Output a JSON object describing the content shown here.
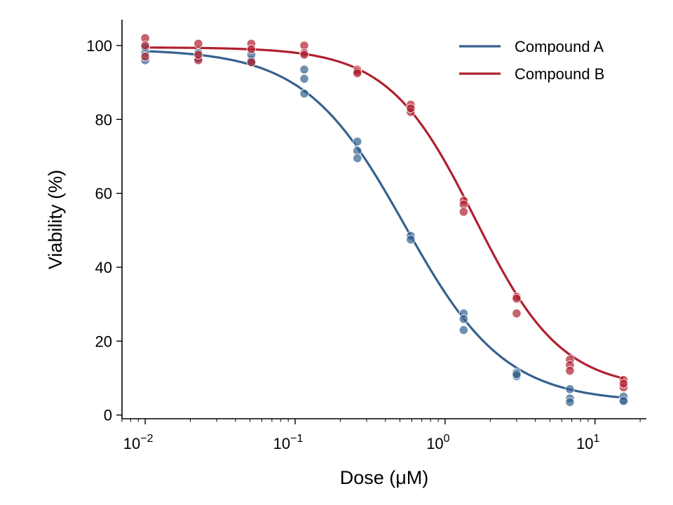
{
  "chart_data": {
    "type": "scatter",
    "title": "",
    "xlabel": "Dose (μM)",
    "ylabel": "Viability (%)",
    "xscale": "log",
    "xlim": [
      0.007,
      22
    ],
    "ylim": [
      -1,
      107
    ],
    "x_ticks": [
      {
        "value": 0.01,
        "label": "10",
        "exp": "−2"
      },
      {
        "value": 0.1,
        "label": "10",
        "exp": "−1"
      },
      {
        "value": 1,
        "label": "10",
        "exp": "0"
      },
      {
        "value": 10,
        "label": "10",
        "exp": "1"
      }
    ],
    "y_ticks": [
      0,
      20,
      40,
      60,
      80,
      100
    ],
    "grid": false,
    "legend": {
      "placement": "top-right"
    },
    "series": [
      {
        "name": "Compound A",
        "color": "#35618f",
        "fit": {
          "top": 99,
          "bottom": 3.5,
          "ic50": 0.54,
          "hill": 1.3
        },
        "points": [
          {
            "x": 0.01,
            "y": 96
          },
          {
            "x": 0.01,
            "y": 98
          },
          {
            "x": 0.01,
            "y": 99.5
          },
          {
            "x": 0.0226,
            "y": 97
          },
          {
            "x": 0.0226,
            "y": 98
          },
          {
            "x": 0.0226,
            "y": 96.5
          },
          {
            "x": 0.051,
            "y": 96
          },
          {
            "x": 0.051,
            "y": 97.5
          },
          {
            "x": 0.051,
            "y": 95.5
          },
          {
            "x": 0.115,
            "y": 87
          },
          {
            "x": 0.115,
            "y": 91
          },
          {
            "x": 0.115,
            "y": 93.5
          },
          {
            "x": 0.26,
            "y": 74
          },
          {
            "x": 0.26,
            "y": 71.5
          },
          {
            "x": 0.26,
            "y": 69.5
          },
          {
            "x": 0.59,
            "y": 48.5
          },
          {
            "x": 0.59,
            "y": 47.5
          },
          {
            "x": 1.33,
            "y": 27.5
          },
          {
            "x": 1.33,
            "y": 26
          },
          {
            "x": 1.33,
            "y": 23
          },
          {
            "x": 3.0,
            "y": 11.5
          },
          {
            "x": 3.0,
            "y": 10.5
          },
          {
            "x": 3.0,
            "y": 11
          },
          {
            "x": 6.8,
            "y": 7
          },
          {
            "x": 6.8,
            "y": 4.5
          },
          {
            "x": 6.8,
            "y": 3.5
          },
          {
            "x": 15.5,
            "y": 4
          },
          {
            "x": 15.5,
            "y": 5
          },
          {
            "x": 15.5,
            "y": 3.8
          }
        ]
      },
      {
        "name": "Compound B",
        "color": "#b0202f",
        "fit": {
          "top": 99.5,
          "bottom": 7,
          "ic50": 1.58,
          "hill": 1.5
        },
        "points": [
          {
            "x": 0.01,
            "y": 102
          },
          {
            "x": 0.01,
            "y": 100
          },
          {
            "x": 0.01,
            "y": 97
          },
          {
            "x": 0.0226,
            "y": 100.5
          },
          {
            "x": 0.0226,
            "y": 96
          },
          {
            "x": 0.0226,
            "y": 97.5
          },
          {
            "x": 0.051,
            "y": 100.5
          },
          {
            "x": 0.051,
            "y": 95.5
          },
          {
            "x": 0.051,
            "y": 99
          },
          {
            "x": 0.115,
            "y": 100
          },
          {
            "x": 0.115,
            "y": 98
          },
          {
            "x": 0.115,
            "y": 97.5
          },
          {
            "x": 0.26,
            "y": 93.5
          },
          {
            "x": 0.26,
            "y": 93
          },
          {
            "x": 0.26,
            "y": 92.5
          },
          {
            "x": 0.59,
            "y": 84
          },
          {
            "x": 0.59,
            "y": 82
          },
          {
            "x": 0.59,
            "y": 83
          },
          {
            "x": 1.33,
            "y": 58
          },
          {
            "x": 1.33,
            "y": 57
          },
          {
            "x": 1.33,
            "y": 55
          },
          {
            "x": 3.0,
            "y": 32
          },
          {
            "x": 3.0,
            "y": 31.5
          },
          {
            "x": 3.0,
            "y": 27.5
          },
          {
            "x": 6.8,
            "y": 15
          },
          {
            "x": 6.8,
            "y": 13.5
          },
          {
            "x": 6.8,
            "y": 12
          },
          {
            "x": 15.5,
            "y": 9.5
          },
          {
            "x": 15.5,
            "y": 7.5
          },
          {
            "x": 15.5,
            "y": 8.5
          }
        ]
      }
    ]
  }
}
